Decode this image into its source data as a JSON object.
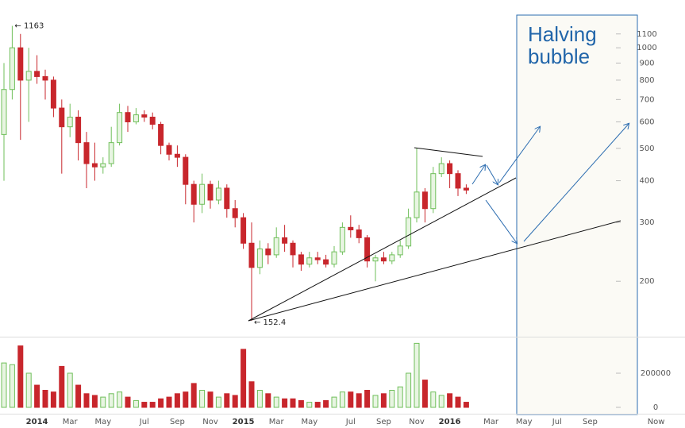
{
  "chart_data": {
    "type": "candlestick",
    "categories": [
      null,
      null,
      null,
      null,
      "2014",
      null,
      null,
      null,
      "Mar",
      null,
      null,
      null,
      "May",
      null,
      null,
      null,
      null,
      "Jul",
      null,
      null,
      null,
      "Sep",
      null,
      null,
      null,
      "Nov",
      null,
      null,
      null,
      "2015",
      null,
      null,
      null,
      "Mar",
      null,
      null,
      null,
      "May",
      null,
      null,
      null,
      null,
      "Jul",
      null,
      null,
      null,
      "Sep",
      null,
      null,
      null,
      "Nov",
      null,
      null,
      null,
      "2016",
      null,
      null,
      null,
      null,
      "Mar",
      null,
      null,
      null,
      "May",
      null,
      null,
      null,
      "Jul",
      null,
      null,
      null,
      "Sep",
      null,
      null,
      null,
      null,
      null,
      null,
      null,
      "Now"
    ],
    "open": [
      550,
      750,
      1000,
      800,
      850,
      820,
      800,
      660,
      580,
      620,
      520,
      450,
      440,
      450,
      520,
      640,
      600,
      630,
      620,
      590,
      510,
      480,
      470,
      390,
      340,
      390,
      350,
      380,
      330,
      310,
      260,
      220,
      250,
      240,
      270,
      260,
      240,
      225,
      235,
      232,
      225,
      245,
      290,
      285,
      270,
      230,
      235,
      230,
      240,
      255,
      310,
      370,
      330,
      420,
      450,
      420,
      380,
      null,
      null,
      null,
      null,
      null,
      null,
      null,
      null,
      null,
      null,
      null,
      null,
      null,
      null,
      null,
      null,
      null,
      null,
      null,
      null,
      null,
      null,
      null
    ],
    "high": [
      900,
      1163,
      1100,
      1000,
      950,
      860,
      820,
      700,
      680,
      650,
      560,
      520,
      470,
      580,
      680,
      670,
      660,
      650,
      640,
      600,
      520,
      510,
      480,
      400,
      420,
      400,
      400,
      390,
      350,
      320,
      300,
      265,
      260,
      290,
      295,
      265,
      245,
      245,
      245,
      240,
      255,
      300,
      315,
      295,
      275,
      240,
      245,
      245,
      265,
      330,
      500,
      380,
      440,
      470,
      460,
      430,
      390,
      null,
      null,
      null,
      null,
      null,
      null,
      null,
      null,
      null,
      null,
      null,
      null,
      null,
      null,
      null,
      null,
      null,
      null,
      null,
      null,
      null,
      null,
      null
    ],
    "low": [
      400,
      700,
      530,
      600,
      780,
      700,
      620,
      420,
      540,
      460,
      380,
      400,
      420,
      440,
      510,
      560,
      590,
      600,
      570,
      480,
      460,
      440,
      340,
      300,
      320,
      330,
      340,
      310,
      290,
      250,
      152.4,
      210,
      225,
      235,
      245,
      220,
      215,
      220,
      225,
      220,
      220,
      240,
      270,
      260,
      220,
      200,
      225,
      225,
      235,
      250,
      300,
      300,
      320,
      410,
      380,
      360,
      365,
      null,
      null,
      null,
      null,
      null,
      null,
      null,
      null,
      null,
      null,
      null,
      null,
      null,
      null,
      null,
      null,
      null,
      null,
      null,
      null,
      null,
      null,
      null
    ],
    "close": [
      750,
      1000,
      800,
      850,
      820,
      800,
      660,
      580,
      620,
      520,
      450,
      440,
      450,
      520,
      640,
      600,
      630,
      620,
      590,
      510,
      480,
      470,
      390,
      340,
      390,
      350,
      380,
      330,
      310,
      260,
      220,
      250,
      240,
      270,
      260,
      240,
      225,
      235,
      232,
      225,
      245,
      290,
      285,
      270,
      230,
      235,
      230,
      240,
      255,
      310,
      370,
      330,
      420,
      450,
      420,
      380,
      375,
      null,
      null,
      null,
      null,
      null,
      null,
      null,
      null,
      null,
      null,
      null,
      null,
      null,
      null,
      null,
      null,
      null,
      null,
      null,
      null,
      null,
      null,
      null
    ],
    "volume": [
      260000,
      250000,
      360000,
      200000,
      130000,
      100000,
      90000,
      240000,
      200000,
      130000,
      80000,
      70000,
      60000,
      80000,
      90000,
      60000,
      40000,
      30000,
      30000,
      50000,
      60000,
      80000,
      90000,
      140000,
      100000,
      90000,
      60000,
      80000,
      70000,
      340000,
      150000,
      100000,
      80000,
      60000,
      50000,
      50000,
      40000,
      30000,
      30000,
      40000,
      60000,
      90000,
      90000,
      80000,
      100000,
      70000,
      80000,
      100000,
      120000,
      200000,
      375000,
      160000,
      90000,
      70000,
      80000,
      60000,
      30000,
      null,
      null,
      null,
      null,
      null,
      null,
      null,
      null,
      null,
      null,
      null,
      null,
      null,
      null,
      null,
      null,
      null,
      null,
      null,
      null,
      null,
      null,
      null
    ],
    "up_color": "#6fbf5a",
    "down_color": "#c8262c",
    "log_scale": true,
    "ylim": [
      138,
      1390
    ],
    "yticks": [
      200,
      300,
      400,
      500,
      600,
      700,
      800,
      900,
      1000,
      1100
    ],
    "volume_lim": [
      0,
      400000
    ],
    "volume_ticks": [
      0,
      200000
    ],
    "annotations": [
      "← 1163",
      "← 152.4"
    ],
    "callout": [
      "Halving",
      "bubble"
    ]
  }
}
